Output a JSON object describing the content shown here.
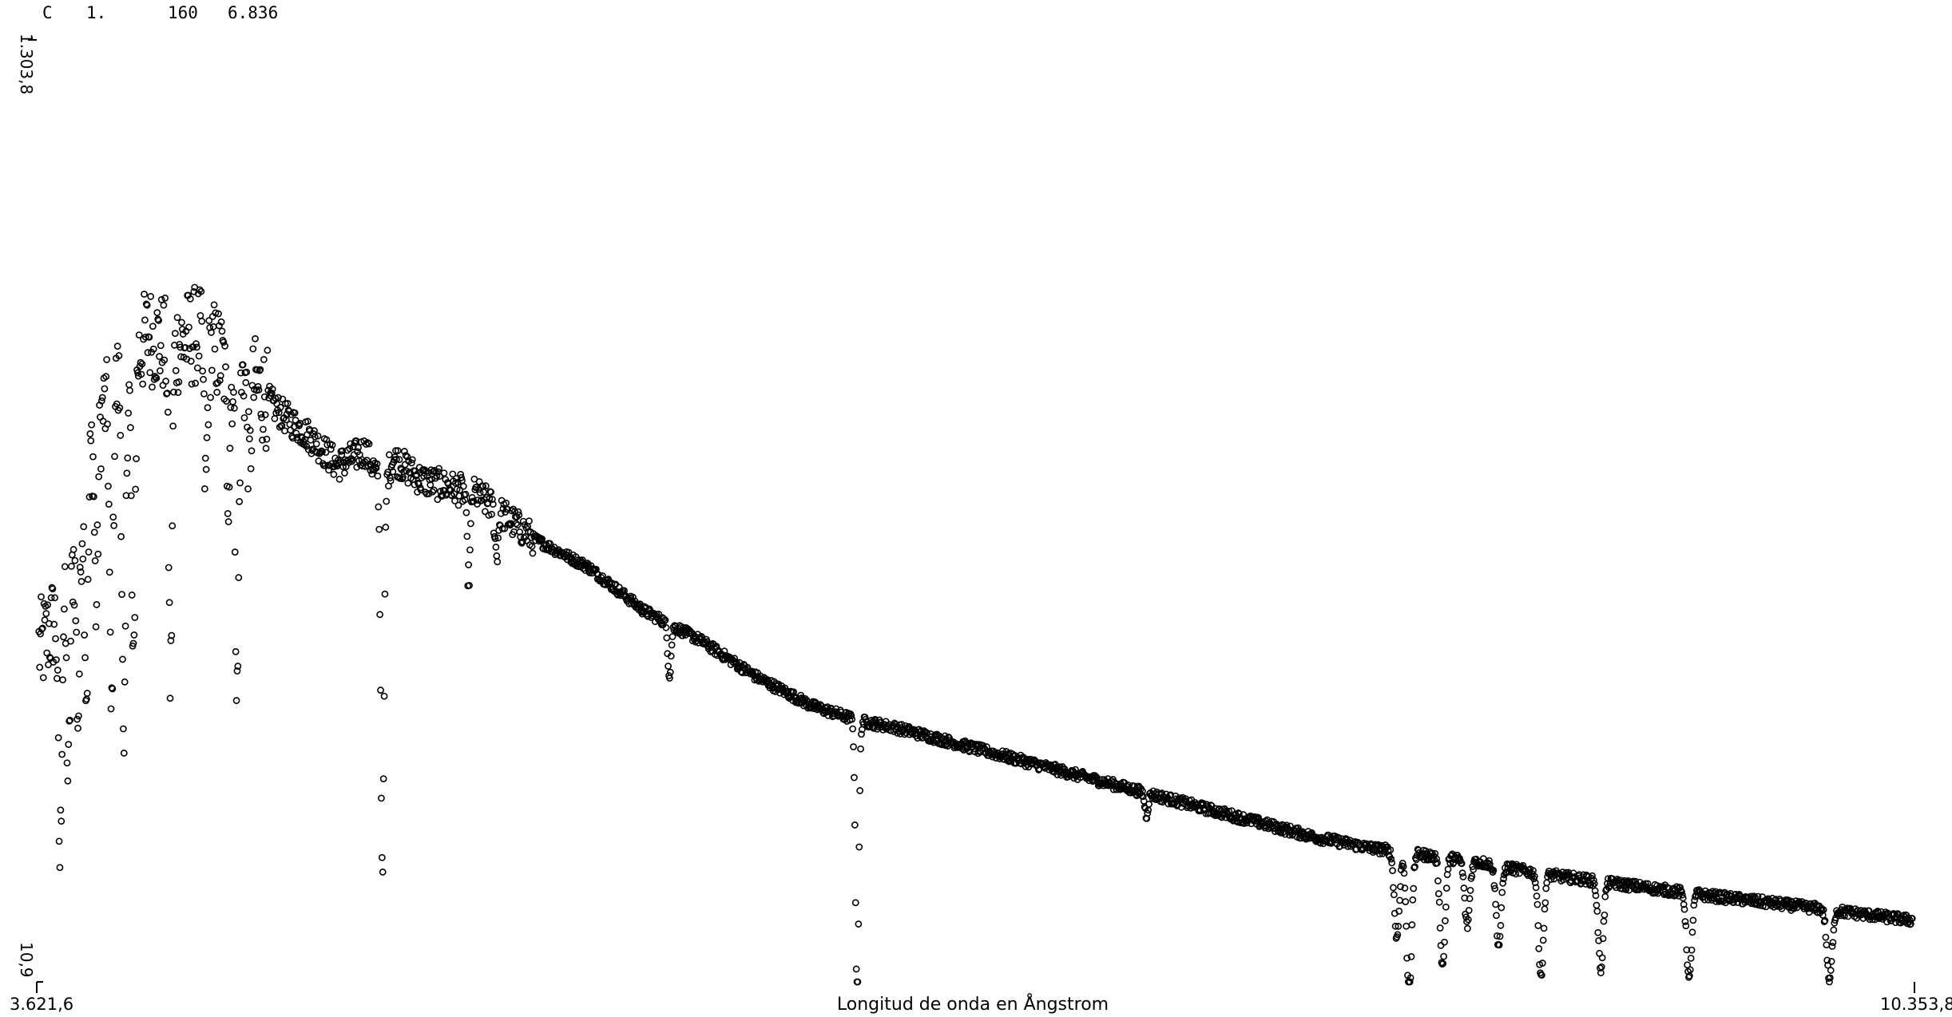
{
  "header": {
    "fields": [
      "C",
      "1.",
      "160",
      "6.836"
    ]
  },
  "chart_data": {
    "type": "scatter",
    "title": "",
    "xlabel": "Longitud de onda en Ångstrom",
    "ylabel": "",
    "xlim": [
      3621.6,
      10353.8
    ],
    "ylim": [
      10.9,
      1303.8
    ],
    "x_tick_labels": [
      "3.621,6",
      "10.353,8"
    ],
    "y_tick_labels": [
      "10,9",
      "1.303,8"
    ],
    "grid": false,
    "legend": "none",
    "marker": "open-circle",
    "marker_color": "#000000",
    "continuum": {
      "x": [
        3640,
        3700,
        3760,
        3820,
        3900,
        3960,
        4020,
        4100,
        4200,
        4300,
        4400,
        4500,
        4600,
        4700,
        4800,
        4861,
        4900,
        5000,
        5200,
        5400,
        5600,
        5800,
        6000,
        6200,
        6400,
        6563,
        6700,
        7000,
        7400,
        7800,
        8200,
        8400,
        8600,
        8800,
        9000,
        9300,
        9600,
        10000,
        10353.8
      ],
      "y": [
        470,
        520,
        610,
        760,
        830,
        850,
        900,
        880,
        900,
        860,
        830,
        790,
        760,
        720,
        740,
        690,
        730,
        700,
        680,
        620,
        580,
        520,
        480,
        430,
        390,
        370,
        360,
        330,
        290,
        250,
        210,
        195,
        185,
        175,
        160,
        145,
        130,
        112,
        95
      ]
    },
    "absorption_lines": {
      "x": [
        3705,
        3735,
        3770,
        3800,
        3835,
        3889,
        3934,
        3968,
        4101,
        4227,
        4308,
        4340,
        4384,
        4861,
        5170,
        5270,
        5890,
        6563,
        7600,
        8498,
        8542,
        8662,
        8750,
        8863,
        9015,
        9229,
        9546,
        10049
      ],
      "depth": [
        350,
        290,
        260,
        300,
        250,
        450,
        560,
        440,
        460,
        200,
        160,
        450,
        120,
        520,
        120,
        60,
        70,
        380,
        30,
        120,
        200,
        150,
        90,
        110,
        140,
        120,
        120,
        100
      ]
    }
  }
}
